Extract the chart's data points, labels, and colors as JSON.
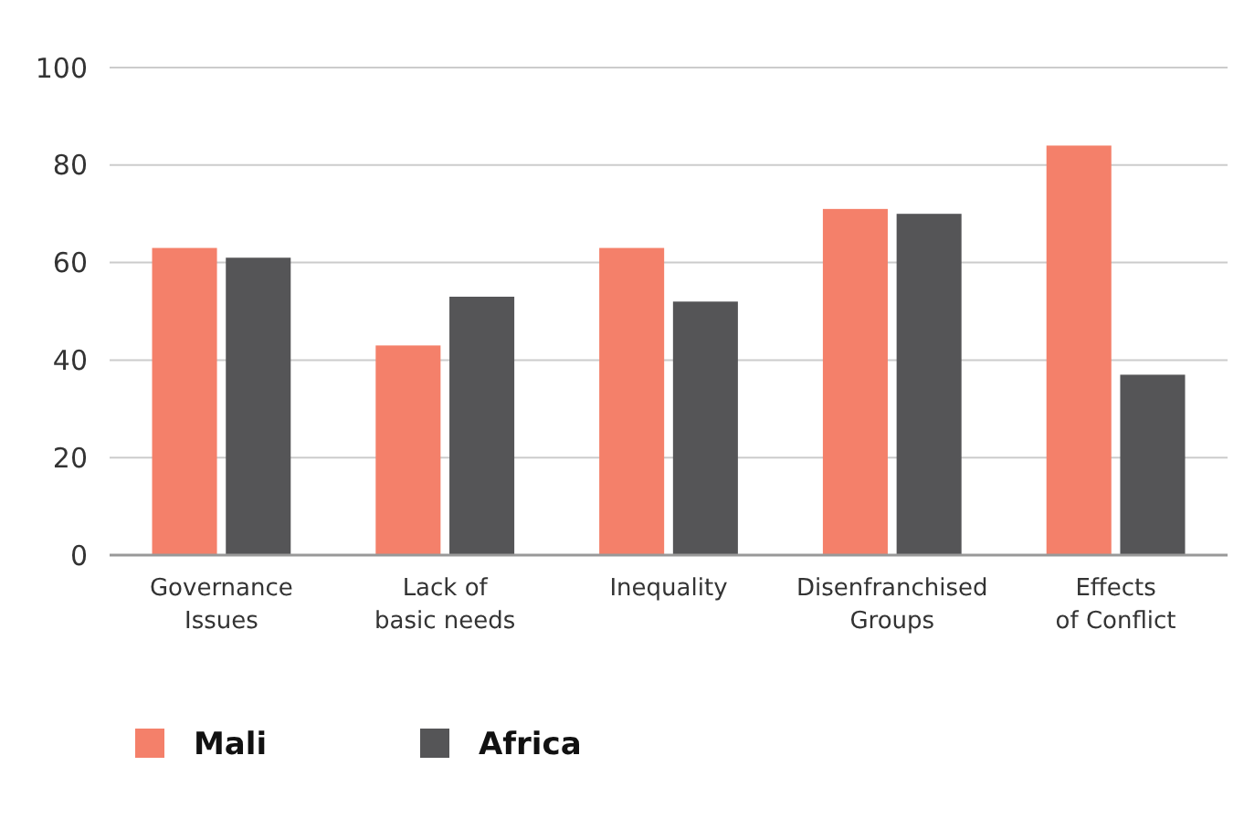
{
  "chart_data": {
    "type": "bar",
    "categories": [
      "Governance\nIssues",
      "Lack of\nbasic needs",
      "Inequality",
      "Disenfranchised\nGroups",
      "Effects\nof Conflict"
    ],
    "series": [
      {
        "name": "Mali",
        "color": "#f4806a",
        "values": [
          63,
          43,
          63,
          71,
          84
        ]
      },
      {
        "name": "Africa",
        "color": "#555557",
        "values": [
          61,
          53,
          52,
          70,
          37
        ]
      }
    ],
    "ylim": [
      0,
      100
    ],
    "yticks": [
      0,
      20,
      40,
      60,
      80,
      100
    ],
    "grid": "y",
    "legend": "bottom left"
  }
}
